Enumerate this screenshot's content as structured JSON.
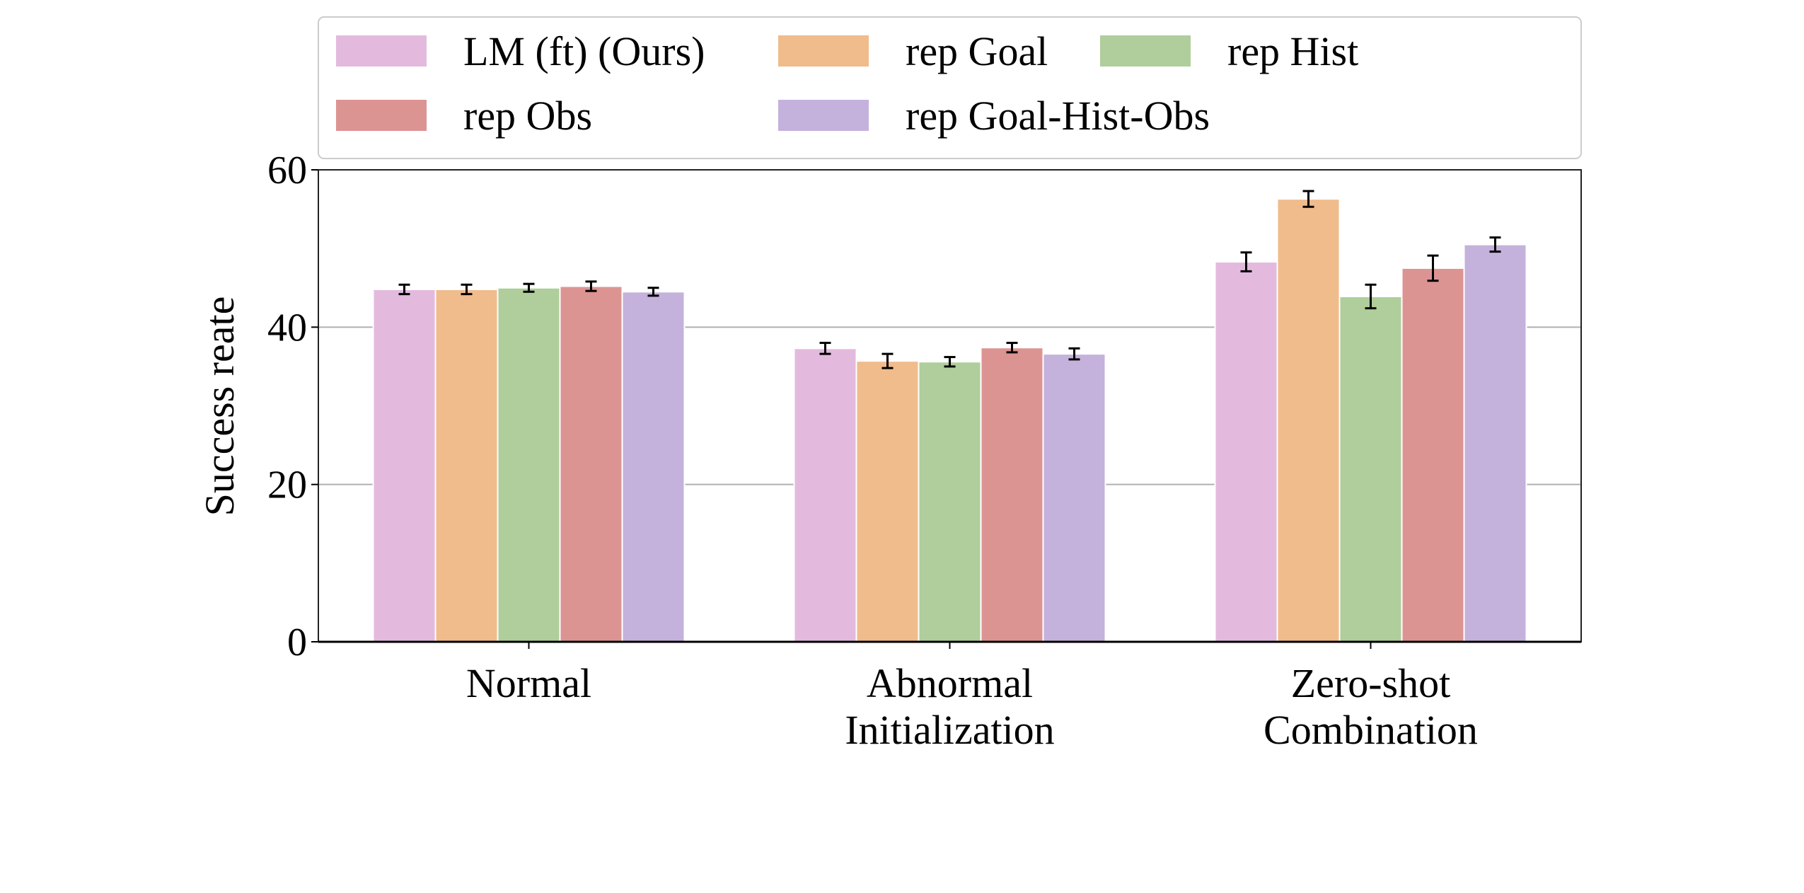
{
  "chart_data": {
    "type": "bar",
    "title": "",
    "xlabel": "",
    "ylabel": "Success reate",
    "ylim": [
      0,
      60
    ],
    "yticks": [
      0,
      20,
      40,
      60
    ],
    "grid": "horizontal",
    "legend_position": "top",
    "categories": [
      [
        "Normal"
      ],
      [
        "Abnormal",
        "Initialization"
      ],
      [
        "Zero-shot",
        "Combination"
      ]
    ],
    "series": [
      {
        "name": "LM (ft) (Ours)",
        "color": "#e3bade",
        "values": [
          44.8,
          37.3,
          48.3
        ],
        "errors": [
          0.6,
          0.7,
          1.2
        ]
      },
      {
        "name": "rep Goal",
        "color": "#f0bc8c",
        "values": [
          44.8,
          35.7,
          56.3
        ],
        "errors": [
          0.6,
          0.9,
          1.0
        ]
      },
      {
        "name": "rep Hist",
        "color": "#afce9b",
        "values": [
          45.0,
          35.6,
          43.9
        ],
        "errors": [
          0.5,
          0.6,
          1.5
        ]
      },
      {
        "name": "rep Obs",
        "color": "#dc9493",
        "values": [
          45.2,
          37.4,
          47.5
        ],
        "errors": [
          0.6,
          0.6,
          1.6
        ]
      },
      {
        "name": "rep Goal-Hist-Obs",
        "color": "#c4b2dc",
        "values": [
          44.5,
          36.6,
          50.5
        ],
        "errors": [
          0.5,
          0.7,
          0.9
        ]
      }
    ]
  }
}
